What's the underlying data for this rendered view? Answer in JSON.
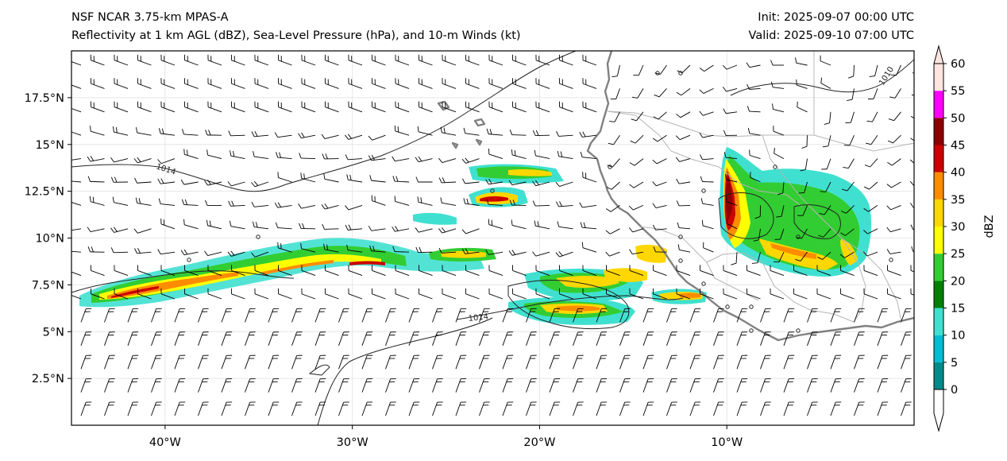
{
  "title": {
    "left_line1": "NSF NCAR 3.75-km MPAS-A",
    "left_line2": "Reflectivity at 1 km AGL (dBZ), Sea-Level Pressure (hPa), and 10-m Winds (kt)",
    "right_line1": "Init: 2025-09-07 00:00 UTC",
    "right_line2": "Valid: 2025-09-10 07:00 UTC"
  },
  "map": {
    "lon_range": [
      -45,
      0
    ],
    "lat_range": [
      0,
      20
    ],
    "lat_ticks": [
      {
        "value": 2.5,
        "label": "2.5°N"
      },
      {
        "value": 5,
        "label": "5°N"
      },
      {
        "value": 7.5,
        "label": "7.5°N"
      },
      {
        "value": 10,
        "label": "10°N"
      },
      {
        "value": 12.5,
        "label": "12.5°N"
      },
      {
        "value": 15,
        "label": "15°N"
      },
      {
        "value": 17.5,
        "label": "17.5°N"
      }
    ],
    "lon_ticks": [
      {
        "value": -40,
        "label": "40°W"
      },
      {
        "value": -30,
        "label": "30°W"
      },
      {
        "value": -20,
        "label": "20°W"
      },
      {
        "value": -10,
        "label": "10°W"
      }
    ],
    "pressure_contours": [
      {
        "label": "1014"
      },
      {
        "label": "1014"
      },
      {
        "label": "1010"
      }
    ]
  },
  "colorbar": {
    "label": "dBZ",
    "ticks": [
      0,
      5,
      10,
      15,
      20,
      25,
      30,
      35,
      40,
      45,
      50,
      55,
      60
    ],
    "colors": [
      "#008b8b",
      "#00bcd4",
      "#40e0d0",
      "#008000",
      "#32cd32",
      "#ffff00",
      "#ffd700",
      "#ff8c00",
      "#cc0000",
      "#8b0000",
      "#ff00ff",
      "#ffe4e1"
    ]
  }
}
